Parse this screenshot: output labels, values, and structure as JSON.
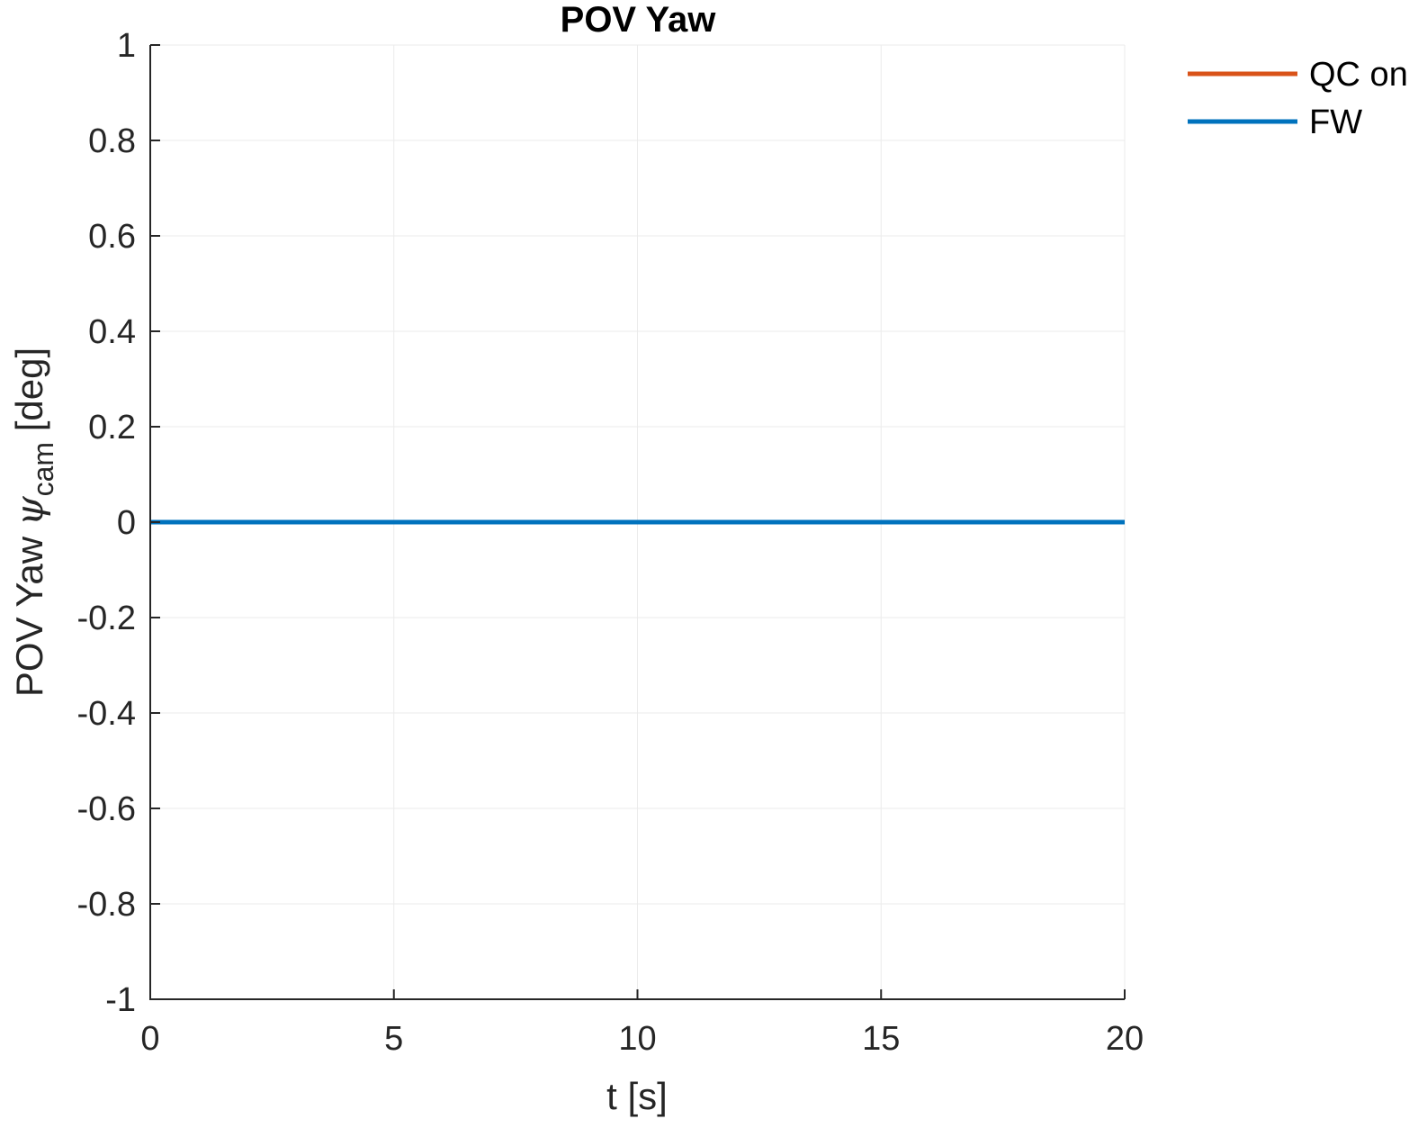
{
  "chart_data": {
    "type": "line",
    "title": "POV Yaw",
    "xlabel": "t [s]",
    "ylabel": {
      "main": "POV Yaw ",
      "symbol": "ψ",
      "subscript": "cam",
      "unit": " [deg]"
    },
    "xlim": [
      0,
      20
    ],
    "ylim": [
      -1,
      1
    ],
    "x_ticks": [
      0,
      5,
      10,
      15,
      20
    ],
    "y_ticks": [
      -1,
      -0.8,
      -0.6,
      -0.4,
      -0.2,
      0,
      0.2,
      0.4,
      0.6,
      0.8,
      1
    ],
    "grid": true,
    "legend_position": "top-right-outside",
    "series": [
      {
        "name": "QC on",
        "color": "#D95319",
        "x": [
          0,
          20
        ],
        "y": [
          0,
          0
        ]
      },
      {
        "name": "FW",
        "color": "#0072BD",
        "x": [
          0,
          20
        ],
        "y": [
          0,
          0
        ]
      }
    ]
  }
}
